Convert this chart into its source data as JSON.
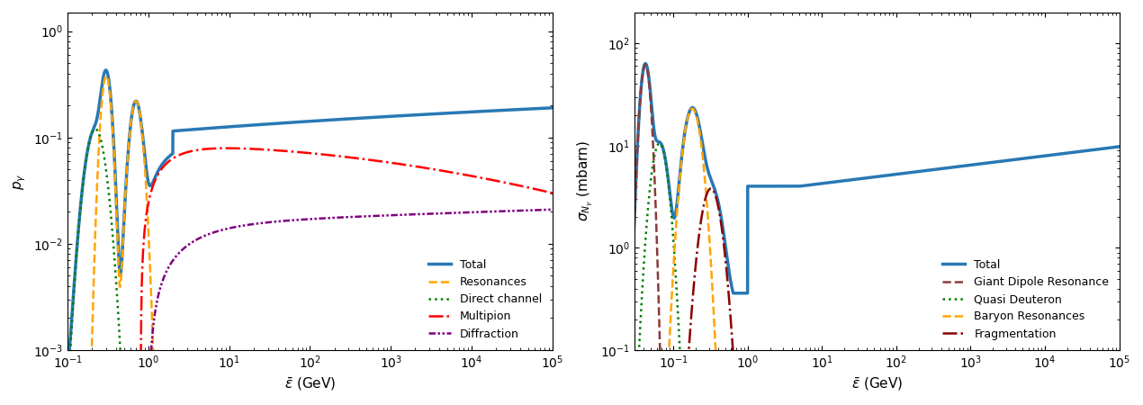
{
  "left_plot": {
    "ylabel": "$p_{\\gamma}$",
    "xlabel": "$\\bar{\\epsilon}$ (GeV)",
    "xlim": [
      0.1,
      100000.0
    ],
    "ylim": [
      0.001,
      1.5
    ],
    "series_names": [
      "Total",
      "Resonances",
      "Direct channel",
      "Multipion",
      "Diffraction"
    ],
    "series_colors": [
      "#2878b5",
      "orange",
      "green",
      "red",
      "purple"
    ],
    "series_lw": [
      2.5,
      1.8,
      1.8,
      1.8,
      1.8
    ]
  },
  "right_plot": {
    "ylabel": "$\\sigma_{N_{\\gamma}}$ (mbarn)",
    "xlabel": "$\\bar{\\epsilon}$ (GeV)",
    "xlim": [
      0.03,
      100000.0
    ],
    "ylim": [
      0.1,
      200.0
    ],
    "series_names": [
      "Total",
      "Giant Dipole Resonance",
      "Quasi Deuteron",
      "Baryon Resonances",
      "Fragmentation"
    ],
    "series_colors": [
      "#2878b5",
      "#8b3a3a",
      "green",
      "orange",
      "#8b0000"
    ],
    "series_lw": [
      2.5,
      1.8,
      1.8,
      1.8,
      1.8
    ]
  }
}
